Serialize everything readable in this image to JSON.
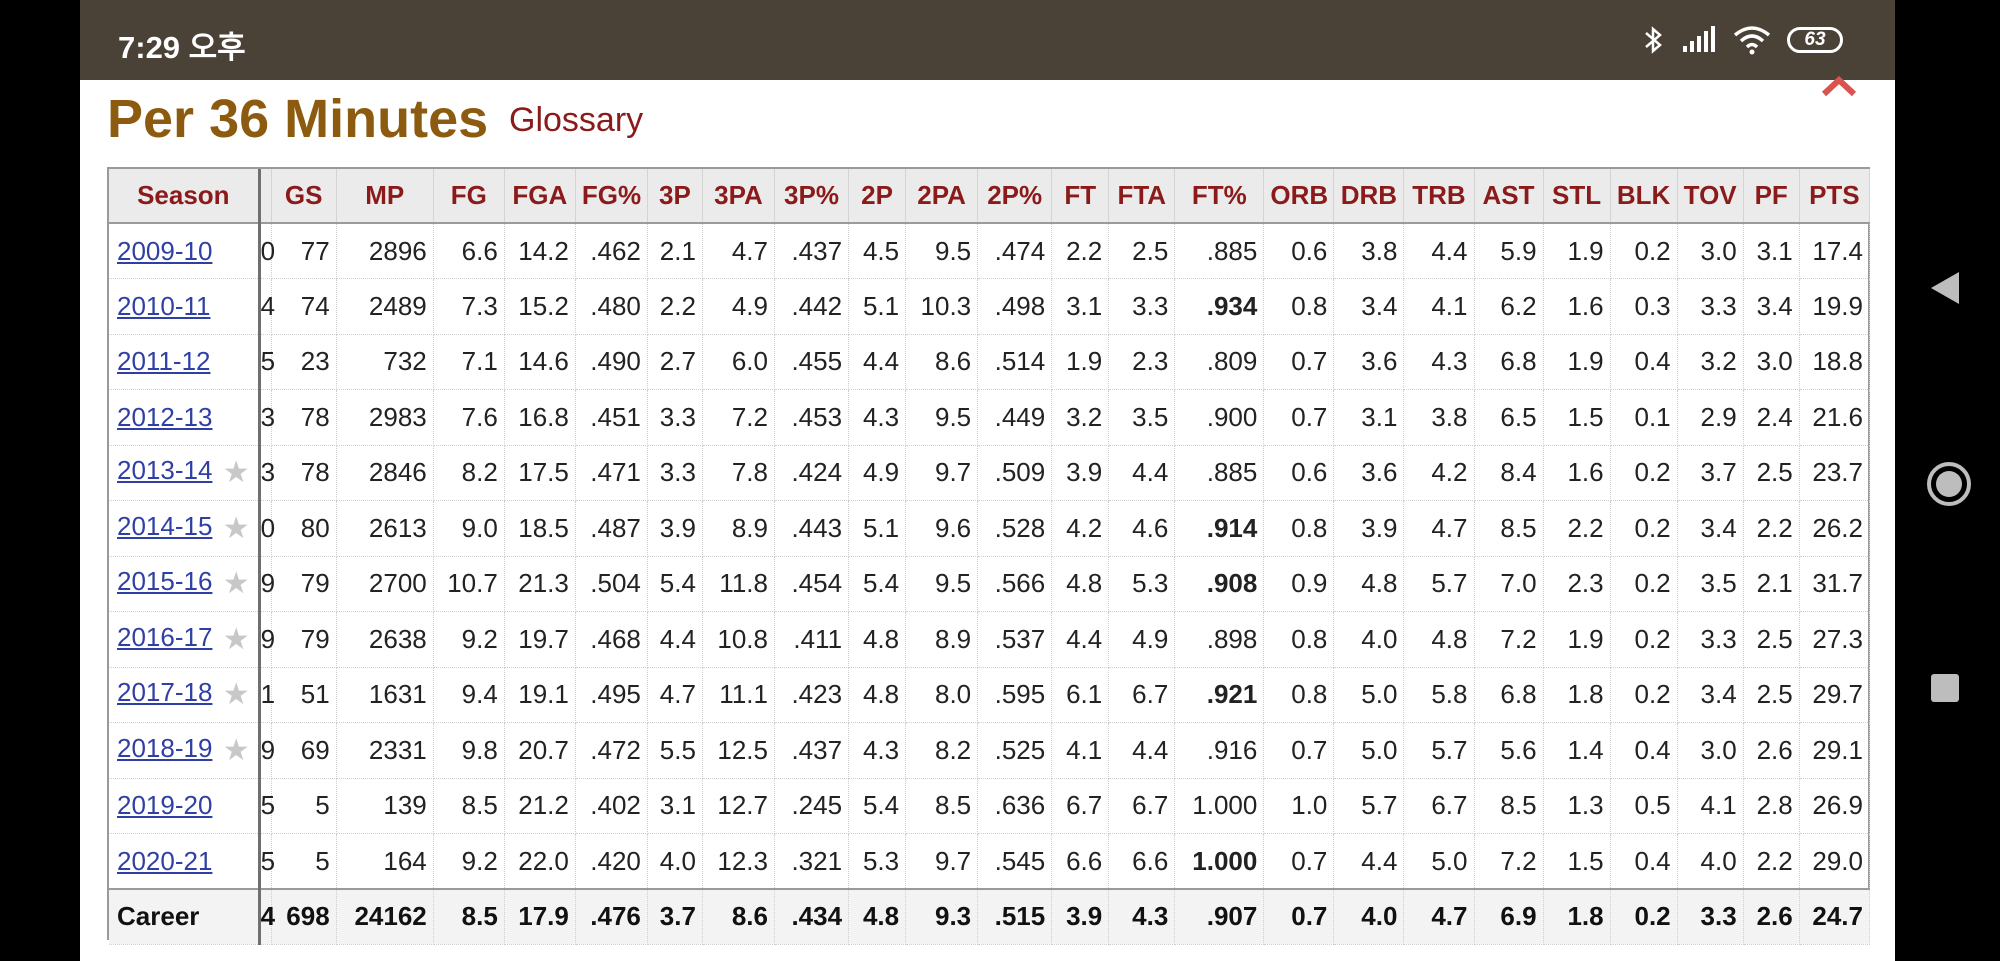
{
  "status": {
    "time": "7:29 오후",
    "battery": "63"
  },
  "page": {
    "title": "Per 36 Minutes",
    "glossary": "Glossary"
  },
  "table": {
    "headers": [
      "Season",
      "",
      "GS",
      "MP",
      "FG",
      "FGA",
      "FG%",
      "3P",
      "3PA",
      "3P%",
      "2P",
      "2PA",
      "2P%",
      "FT",
      "FTA",
      "FT%",
      "ORB",
      "DRB",
      "TRB",
      "AST",
      "STL",
      "BLK",
      "TOV",
      "PF",
      "PTS"
    ],
    "rows": [
      {
        "season": "2009-10",
        "star": false,
        "age": "0",
        "cells": [
          "77",
          "2896",
          "6.6",
          "14.2",
          ".462",
          "2.1",
          "4.7",
          ".437",
          "4.5",
          "9.5",
          ".474",
          "2.2",
          "2.5",
          ".885",
          "0.6",
          "3.8",
          "4.4",
          "5.9",
          "1.9",
          "0.2",
          "3.0",
          "3.1",
          "17.4"
        ]
      },
      {
        "season": "2010-11",
        "star": false,
        "age": "4",
        "cells": [
          "74",
          "2489",
          "7.3",
          "15.2",
          ".480",
          "2.2",
          "4.9",
          ".442",
          "5.1",
          "10.3",
          ".498",
          "3.1",
          "3.3",
          ".934",
          "0.8",
          "3.4",
          "4.1",
          "6.2",
          "1.6",
          "0.3",
          "3.3",
          "3.4",
          "19.9"
        ]
      },
      {
        "season": "2011-12",
        "star": false,
        "age": "5",
        "cells": [
          "23",
          "732",
          "7.1",
          "14.6",
          ".490",
          "2.7",
          "6.0",
          ".455",
          "4.4",
          "8.6",
          ".514",
          "1.9",
          "2.3",
          ".809",
          "0.7",
          "3.6",
          "4.3",
          "6.8",
          "1.9",
          "0.4",
          "3.2",
          "3.0",
          "18.8"
        ]
      },
      {
        "season": "2012-13",
        "star": false,
        "age": "3",
        "cells": [
          "78",
          "2983",
          "7.6",
          "16.8",
          ".451",
          "3.3",
          "7.2",
          ".453",
          "4.3",
          "9.5",
          ".449",
          "3.2",
          "3.5",
          ".900",
          "0.7",
          "3.1",
          "3.8",
          "6.5",
          "1.5",
          "0.1",
          "2.9",
          "2.4",
          "21.6"
        ]
      },
      {
        "season": "2013-14",
        "star": true,
        "age": "3",
        "cells": [
          "78",
          "2846",
          "8.2",
          "17.5",
          ".471",
          "3.3",
          "7.8",
          ".424",
          "4.9",
          "9.7",
          ".509",
          "3.9",
          "4.4",
          ".885",
          "0.6",
          "3.6",
          "4.2",
          "8.4",
          "1.6",
          "0.2",
          "3.7",
          "2.5",
          "23.7"
        ]
      },
      {
        "season": "2014-15",
        "star": true,
        "age": "0",
        "cells": [
          "80",
          "2613",
          "9.0",
          "18.5",
          ".487",
          "3.9",
          "8.9",
          ".443",
          "5.1",
          "9.6",
          ".528",
          "4.2",
          "4.6",
          ".914",
          "0.8",
          "3.9",
          "4.7",
          "8.5",
          "2.2",
          "0.2",
          "3.4",
          "2.2",
          "26.2"
        ]
      },
      {
        "season": "2015-16",
        "star": true,
        "age": "9",
        "cells": [
          "79",
          "2700",
          "10.7",
          "21.3",
          ".504",
          "5.4",
          "11.8",
          ".454",
          "5.4",
          "9.5",
          ".566",
          "4.8",
          "5.3",
          ".908",
          "0.9",
          "4.8",
          "5.7",
          "7.0",
          "2.3",
          "0.2",
          "3.5",
          "2.1",
          "31.7"
        ]
      },
      {
        "season": "2016-17",
        "star": true,
        "age": "9",
        "cells": [
          "79",
          "2638",
          "9.2",
          "19.7",
          ".468",
          "4.4",
          "10.8",
          ".411",
          "4.8",
          "8.9",
          ".537",
          "4.4",
          "4.9",
          ".898",
          "0.8",
          "4.0",
          "4.8",
          "7.2",
          "1.9",
          "0.2",
          "3.3",
          "2.5",
          "27.3"
        ]
      },
      {
        "season": "2017-18",
        "star": true,
        "age": "1",
        "cells": [
          "51",
          "1631",
          "9.4",
          "19.1",
          ".495",
          "4.7",
          "11.1",
          ".423",
          "4.8",
          "8.0",
          ".595",
          "6.1",
          "6.7",
          ".921",
          "0.8",
          "5.0",
          "5.8",
          "6.8",
          "1.8",
          "0.2",
          "3.4",
          "2.5",
          "29.7"
        ]
      },
      {
        "season": "2018-19",
        "star": true,
        "age": "9",
        "cells": [
          "69",
          "2331",
          "9.8",
          "20.7",
          ".472",
          "5.5",
          "12.5",
          ".437",
          "4.3",
          "8.2",
          ".525",
          "4.1",
          "4.4",
          ".916",
          "0.7",
          "5.0",
          "5.7",
          "5.6",
          "1.4",
          "0.4",
          "3.0",
          "2.6",
          "29.1"
        ]
      },
      {
        "season": "2019-20",
        "star": false,
        "age": "5",
        "cells": [
          "5",
          "139",
          "8.5",
          "21.2",
          ".402",
          "3.1",
          "12.7",
          ".245",
          "5.4",
          "8.5",
          ".636",
          "6.7",
          "6.7",
          "1.000",
          "1.0",
          "5.7",
          "6.7",
          "8.5",
          "1.3",
          "0.5",
          "4.1",
          "2.8",
          "26.9"
        ]
      },
      {
        "season": "2020-21",
        "star": false,
        "age": "5",
        "cells": [
          "5",
          "164",
          "9.2",
          "22.0",
          ".420",
          "4.0",
          "12.3",
          ".321",
          "5.3",
          "9.7",
          ".545",
          "6.6",
          "6.6",
          "1.000",
          "0.7",
          "4.4",
          "5.0",
          "7.2",
          "1.5",
          "0.4",
          "4.0",
          "2.2",
          "29.0"
        ]
      }
    ],
    "bold_ft_rows": [
      1,
      5,
      6,
      8,
      11
    ],
    "career": {
      "label": "Career",
      "age": "4",
      "cells": [
        "698",
        "24162",
        "8.5",
        "17.9",
        ".476",
        "3.7",
        "8.6",
        ".434",
        "4.8",
        "9.3",
        ".515",
        "3.9",
        "4.3",
        ".907",
        "0.7",
        "4.0",
        "4.7",
        "6.9",
        "1.8",
        "0.2",
        "3.3",
        "2.6",
        "24.7"
      ]
    }
  },
  "icons": {
    "star": "star-icon",
    "nav": [
      "back-icon",
      "home-icon",
      "recents-icon"
    ]
  }
}
